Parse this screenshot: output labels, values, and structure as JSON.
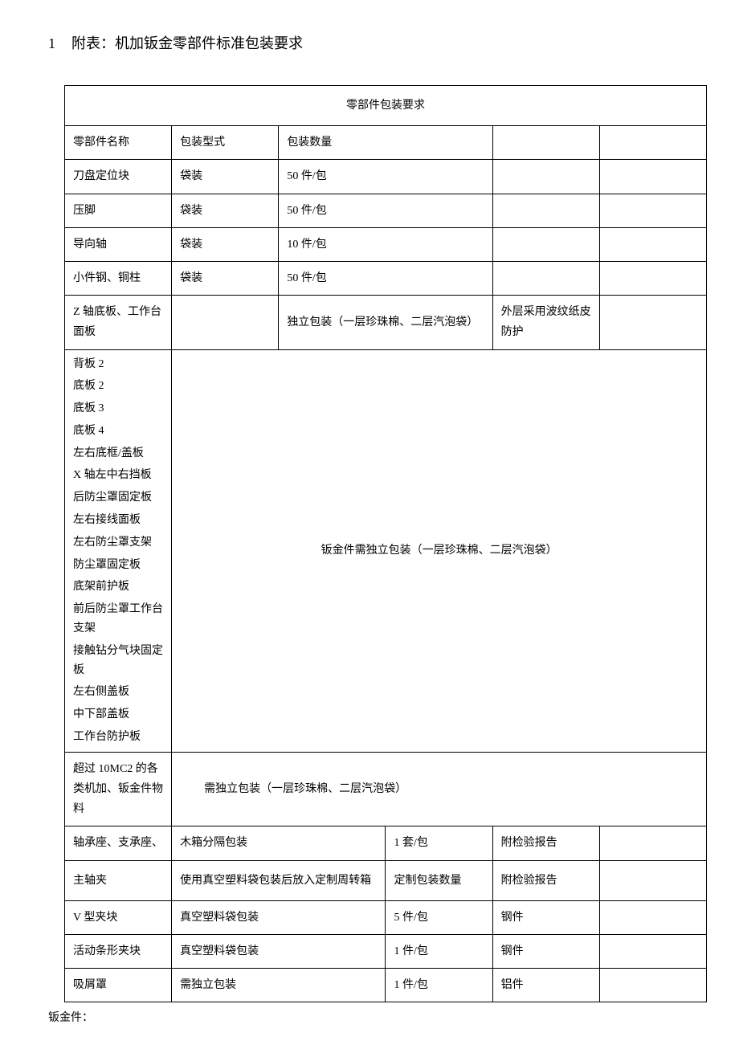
{
  "title": {
    "number": "1",
    "text": "附表：机加钣金零部件标准包装要求"
  },
  "table": {
    "header": "零部件包装要求",
    "columns": {
      "name": "零部件名称",
      "type": "包装型式",
      "qty": "包装数量"
    },
    "rows_top": [
      {
        "name": "刀盘定位块",
        "type": "袋装",
        "qty": "50 件/包"
      },
      {
        "name": "压脚",
        "type": "袋装",
        "qty": "50 件/包"
      },
      {
        "name": "导向轴",
        "type": "袋装",
        "qty": "10 件/包"
      },
      {
        "name": "小件钢、铜柱",
        "type": "袋装",
        "qty": "50 件/包"
      }
    ],
    "z_axis_row": {
      "name": "Z 轴底板、工作台面板",
      "qty": "独立包装（一层珍珠棉、二层汽泡袋）",
      "note": "外层采用波纹纸皮防护"
    },
    "sheet_metal_items": [
      "背板 2",
      "底板 2",
      "底板 3",
      "底板 4",
      "左右底框/盖板",
      "X 轴左中右挡板",
      "后防尘罩固定板",
      "左右接线面板",
      "左右防尘罩支架",
      "防尘罩固定板",
      "底架前护板",
      "前后防尘罩工作台支架",
      "接触钻分气块固定板",
      "左右侧盖板",
      "中下部盖板",
      "工作台防护板"
    ],
    "sheet_metal_note": "钣金件需独立包装（一层珍珠棉、二层汽泡袋）",
    "over_10mc2": {
      "name": "超过 10MC2 的各类机加、钣金件物料",
      "note": "需独立包装（一层珍珠棉、二层汽泡袋）"
    },
    "rows_bottom": [
      {
        "name": "轴承座、支承座、",
        "type": "木箱分隔包装",
        "qty": "1 套/包",
        "note": "附检验报告"
      },
      {
        "name": "主轴夹",
        "type": "使用真空塑料袋包装后放入定制周转箱",
        "qty": "定制包装数量",
        "note": "附检验报告"
      },
      {
        "name": "V 型夹块",
        "type": "真空塑料袋包装",
        "qty": "5 件/包",
        "note": "钢件"
      },
      {
        "name": "活动条形夹块",
        "type": "真空塑料袋包装",
        "qty": "1 件/包",
        "note": "钢件"
      },
      {
        "name": "吸屑罩",
        "type": "需独立包装",
        "qty": "1 件/包",
        "note": "铝件"
      }
    ]
  },
  "footer": "钣金件："
}
